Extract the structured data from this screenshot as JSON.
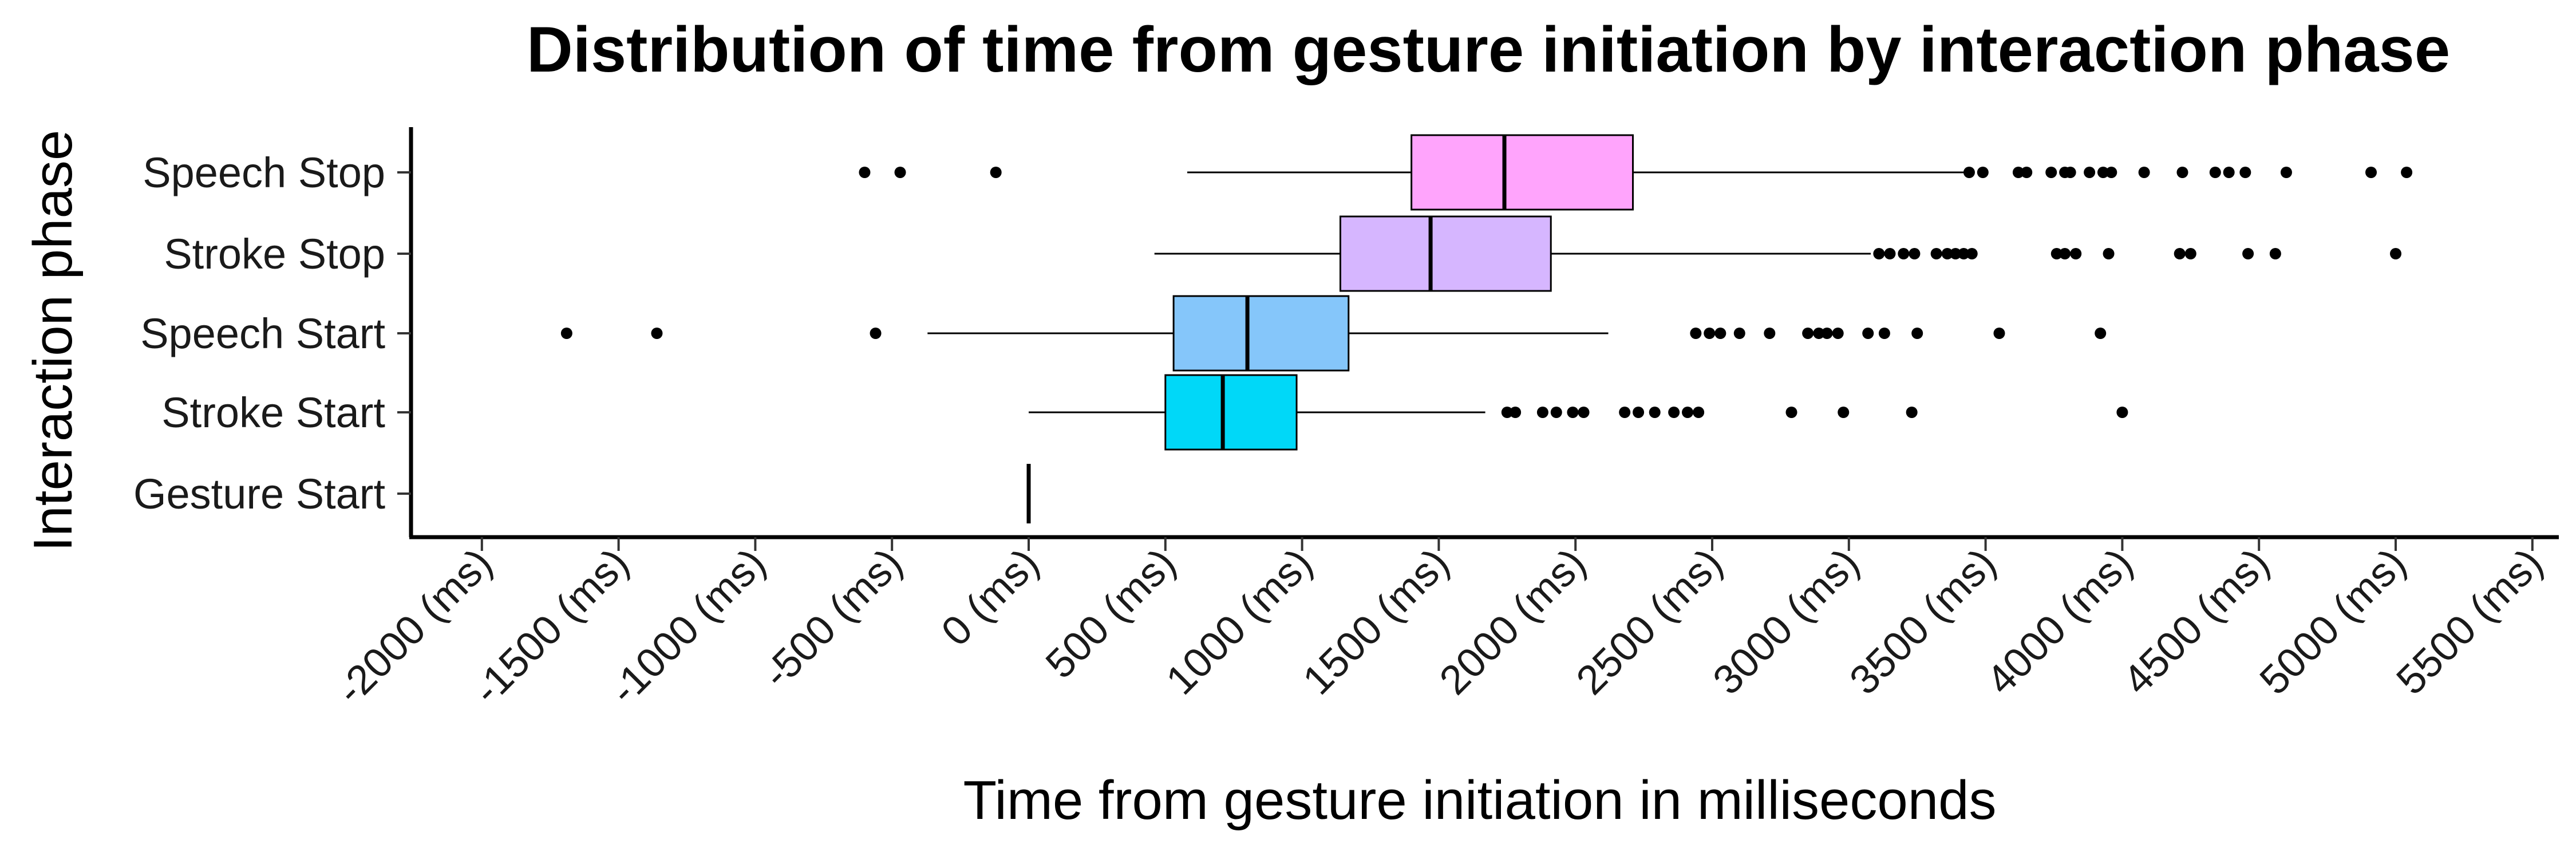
{
  "chart_data": {
    "type": "boxplot",
    "orientation": "horizontal",
    "title": "Distribution of time from gesture initiation by interaction phase",
    "xlabel": "Time from gesture initiation in milliseconds",
    "ylabel": "Interaction phase",
    "xlim": [
      -2000,
      5800
    ],
    "x_ticks": [
      -2000,
      -1500,
      -1000,
      -500,
      0,
      500,
      1000,
      1500,
      2000,
      2500,
      3000,
      3500,
      4000,
      4500,
      5000,
      5500
    ],
    "tick_suffix": " (ms)",
    "grid": false,
    "legend": "none",
    "categories": [
      "Gesture Start",
      "Stroke Start",
      "Speech Start",
      "Stroke Stop",
      "Speech Stop"
    ],
    "series": [
      {
        "name": "Gesture Start",
        "color": "#000000",
        "whisker_low": 0,
        "q1": 0,
        "median": 0,
        "q3": 0,
        "whisker_high": 0,
        "outliers": []
      },
      {
        "name": "Stroke Start",
        "color": "#00D8F8",
        "whisker_low": 0,
        "q1": 500,
        "median": 710,
        "q3": 980,
        "whisker_high": 1670,
        "outliers": [
          1750,
          1780,
          1880,
          1930,
          1990,
          2030,
          2180,
          2230,
          2290,
          2360,
          2410,
          2450,
          2790,
          2980,
          3230,
          4000
        ]
      },
      {
        "name": "Speech Start",
        "color": "#85C6FA",
        "whisker_low": -370,
        "q1": 530,
        "median": 800,
        "q3": 1170,
        "whisker_high": 2120,
        "outliers": [
          -1690,
          -1360,
          -560,
          2440,
          2490,
          2530,
          2600,
          2710,
          2850,
          2890,
          2920,
          2960,
          3070,
          3130,
          3250,
          3550,
          3920
        ]
      },
      {
        "name": "Stroke Stop",
        "color": "#D6B6FF",
        "whisker_low": 460,
        "q1": 1140,
        "median": 1470,
        "q3": 1910,
        "whisker_high": 3080,
        "outliers": [
          3110,
          3150,
          3200,
          3240,
          3320,
          3360,
          3390,
          3420,
          3450,
          3760,
          3790,
          3830,
          3950,
          4210,
          4250,
          4460,
          4560,
          5000
        ]
      },
      {
        "name": "Speech Stop",
        "color": "#FFA4FC",
        "whisker_low": 580,
        "q1": 1400,
        "median": 1740,
        "q3": 2210,
        "whisker_high": 3430,
        "outliers": [
          -470,
          -600,
          -120,
          3440,
          3490,
          3620,
          3650,
          3740,
          3790,
          3810,
          3880,
          3930,
          3960,
          4080,
          4220,
          4340,
          4390,
          4450,
          4600,
          4910,
          5040
        ]
      }
    ]
  }
}
